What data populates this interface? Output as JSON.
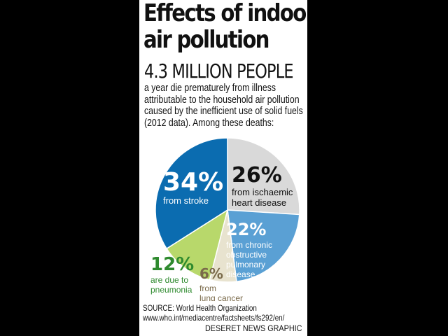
{
  "header": {
    "title_line1": "Effects of indoor",
    "title_line2": "air pollution",
    "headline": "4.3 MILLION PEOPLE",
    "blurb_lines": [
      "a year die prematurely from illness",
      "attributable to the household air pollution",
      "caused by the inefficient use of solid fuels",
      "(2012 data). Among these deaths:"
    ]
  },
  "chart_data": {
    "type": "pie",
    "slices": [
      {
        "value": 26,
        "label_pct": "26%",
        "label_lines": [
          "from ischaemic",
          "heart disease"
        ],
        "color": "#d9d9d9",
        "text_color": "#111111"
      },
      {
        "value": 22,
        "label_pct": "22%",
        "label_lines": [
          "from chronic",
          "obstructive",
          "pulmonary",
          "disease"
        ],
        "color": "#5aa0d4",
        "text_color": "#ffffff"
      },
      {
        "value": 6,
        "label_pct": "6%",
        "label_lines": [
          "from",
          "lung cancer"
        ],
        "color": "#e8e3cf",
        "text_color": "#7a6a4a"
      },
      {
        "value": 12,
        "label_pct": "12%",
        "label_lines": [
          "are due to",
          "pneumonia"
        ],
        "color": "#b8d86b",
        "text_color": "#2e8a2e"
      },
      {
        "value": 34,
        "label_pct": "34%",
        "label_lines": [
          "from stroke"
        ],
        "color": "#0b6cb0",
        "text_color": "#ffffff"
      }
    ]
  },
  "footer": {
    "source_line1": "SOURCE: World Health Organization",
    "source_line2": "www.who.int/mediacentre/factsheets/fs292/en/",
    "credit": "DESERET NEWS GRAPHIC"
  }
}
